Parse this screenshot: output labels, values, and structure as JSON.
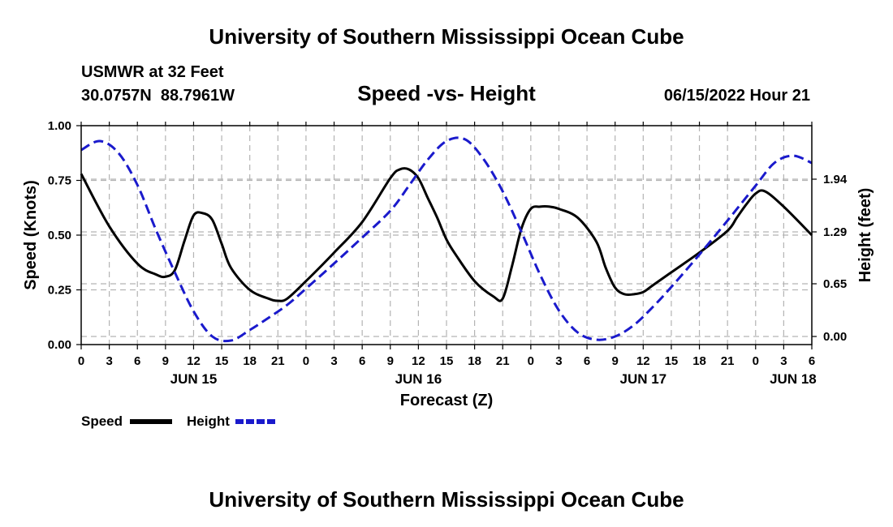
{
  "chart_data": {
    "type": "line",
    "title": "University of Southern Mississippi Ocean Cube",
    "footer_title": "University of Southern Mississippi Ocean Cube",
    "station": "USMWR at 32 Feet",
    "coordinates": "30.0757N  88.7961W",
    "subtitle": "Speed -vs- Height",
    "datetime": "06/15/2022 Hour 21",
    "xlabel": "Forecast (Z)",
    "ylabel_left": "Speed (Knots)",
    "ylabel_right": "Height (feet)",
    "xlim": [
      0,
      78
    ],
    "ylim_left": [
      0,
      1
    ],
    "ylim_right": [
      -0.1,
      2.6
    ],
    "x_tick_hours": [
      0,
      3,
      6,
      9,
      12,
      15,
      18,
      21,
      24,
      27,
      30,
      33,
      36,
      39,
      42,
      45,
      48,
      51,
      54,
      57,
      60,
      63,
      66,
      69,
      72,
      75,
      78
    ],
    "x_tick_labels": [
      "0",
      "3",
      "6",
      "9",
      "12",
      "15",
      "18",
      "21",
      "0",
      "3",
      "6",
      "9",
      "12",
      "15",
      "18",
      "21",
      "0",
      "3",
      "6",
      "9",
      "12",
      "15",
      "18",
      "21",
      "0",
      "3",
      "6"
    ],
    "date_labels": [
      {
        "hour": 12,
        "label": "JUN 15"
      },
      {
        "hour": 36,
        "label": "JUN 16"
      },
      {
        "hour": 60,
        "label": "JUN 17"
      },
      {
        "hour": 76,
        "label": "JUN 18"
      }
    ],
    "y_left_ticks": [
      0,
      0.25,
      0.5,
      0.75,
      1.0
    ],
    "y_left_tick_labels": [
      "0.00",
      "0.25",
      "0.50",
      "0.75",
      "1.00"
    ],
    "y_right_ticks": [
      0,
      0.65,
      1.29,
      1.94
    ],
    "y_right_tick_labels": [
      "0.00",
      "0.65",
      "1.29",
      "1.94"
    ],
    "legend": [
      {
        "name": "Speed",
        "color": "#000000",
        "dash": "solid"
      },
      {
        "name": "Height",
        "color": "#1a1acc",
        "dash": "dashed"
      }
    ],
    "series": [
      {
        "name": "Speed",
        "axis": "left",
        "color": "#000000",
        "x": [
          0,
          3,
          6,
          8,
          9,
          10,
          11,
          12,
          13,
          14,
          15,
          16,
          18,
          20,
          21,
          22,
          24,
          27,
          30,
          33,
          34,
          35,
          36,
          37,
          38,
          39,
          40,
          42,
          44,
          45,
          46,
          47,
          48,
          49,
          50,
          51,
          53,
          55,
          56,
          57,
          58,
          59,
          60,
          61,
          63,
          66,
          69,
          70,
          71,
          72,
          73,
          75,
          78
        ],
        "values": [
          0.78,
          0.54,
          0.37,
          0.32,
          0.31,
          0.34,
          0.47,
          0.59,
          0.6,
          0.57,
          0.46,
          0.35,
          0.25,
          0.21,
          0.2,
          0.21,
          0.29,
          0.42,
          0.56,
          0.76,
          0.8,
          0.8,
          0.76,
          0.67,
          0.58,
          0.48,
          0.41,
          0.29,
          0.22,
          0.21,
          0.36,
          0.53,
          0.62,
          0.63,
          0.63,
          0.62,
          0.58,
          0.47,
          0.35,
          0.26,
          0.23,
          0.23,
          0.24,
          0.27,
          0.33,
          0.42,
          0.52,
          0.58,
          0.64,
          0.69,
          0.7,
          0.63,
          0.5
        ]
      },
      {
        "name": "Height",
        "axis": "right",
        "color": "#1a1acc",
        "x": [
          0,
          2,
          4,
          6,
          8,
          10,
          12,
          14,
          16,
          18,
          20,
          22,
          24,
          27,
          30,
          33,
          35,
          37,
          39,
          41,
          43,
          45,
          47,
          49,
          51,
          53,
          55,
          57,
          59,
          61,
          63,
          66,
          69,
          72,
          74,
          76,
          78
        ],
        "values": [
          2.3,
          2.41,
          2.26,
          1.87,
          1.31,
          0.79,
          0.31,
          0.0,
          -0.05,
          0.08,
          0.23,
          0.39,
          0.59,
          0.9,
          1.22,
          1.55,
          1.86,
          2.18,
          2.41,
          2.43,
          2.18,
          1.79,
          1.29,
          0.76,
          0.32,
          0.05,
          -0.04,
          0.0,
          0.14,
          0.36,
          0.61,
          1.01,
          1.43,
          1.86,
          2.14,
          2.23,
          2.14
        ]
      }
    ]
  }
}
